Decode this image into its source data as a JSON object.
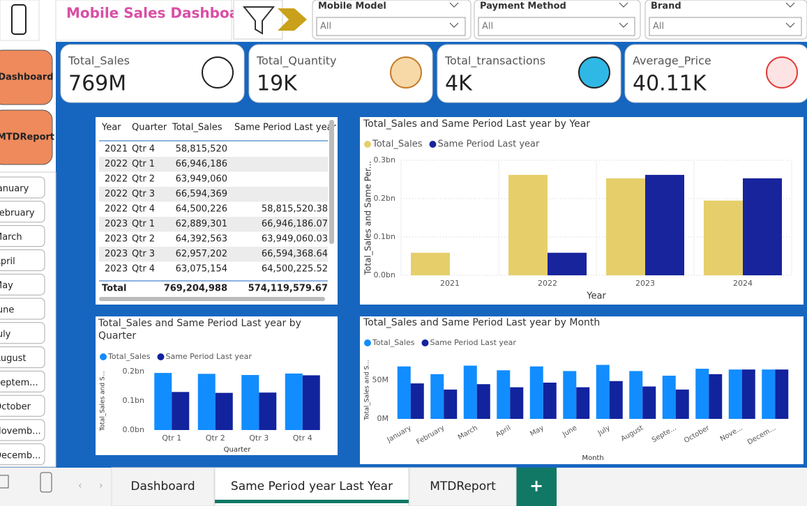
{
  "header": {
    "title": "Mobile Sales Dashboard"
  },
  "filters": [
    {
      "label": "Mobile Model",
      "value": "All"
    },
    {
      "label": "Payment Method",
      "value": "All"
    },
    {
      "label": "Brand",
      "value": "All"
    }
  ],
  "nav": [
    "Dashboard",
    "MTDReport"
  ],
  "months": [
    "January",
    "February",
    "March",
    "April",
    "May",
    "June",
    "July",
    "August",
    "Septem...",
    "October",
    "Novemb...",
    "Decemb..."
  ],
  "cards": [
    {
      "label": "Total_Sales",
      "value": "769M"
    },
    {
      "label": "Total_Quantity",
      "value": "19K"
    },
    {
      "label": "Total_transactions",
      "value": "4K"
    },
    {
      "label": "Average_Price",
      "value": "40.11K"
    }
  ],
  "table": {
    "columns": [
      "Year",
      "Quarter",
      "Total_Sales",
      "Same Period Last year"
    ],
    "rows": [
      [
        "2021",
        "Qtr 4",
        "58,815,520"
      ],
      [
        "2022",
        "Qtr 1",
        "66,946,186"
      ],
      [
        "2022",
        "Qtr 2",
        "63,949,060"
      ],
      [
        "2022",
        "Qtr 3",
        "66,594,369"
      ],
      [
        "2022",
        "Qtr 4",
        "64,500,226",
        "58,815,520.38"
      ],
      [
        "2023",
        "Qtr 1",
        "62,889,301",
        "66,946,186.07"
      ],
      [
        "2023",
        "Qtr 2",
        "64,392,563",
        "63,949,060.03"
      ],
      [
        "2023",
        "Qtr 3",
        "62,957,202",
        "66,594,368.64"
      ],
      [
        "2023",
        "Qtr 4",
        "63,075,154",
        "64,500,225.52"
      ]
    ],
    "total": [
      "Total",
      "769,204,988",
      "574,119,579.67"
    ]
  },
  "chart_data": [
    {
      "type": "bar",
      "title": "Total_Sales and Same Period Last year by Year",
      "categories": [
        "2021",
        "2022",
        "2023",
        "2024"
      ],
      "series": [
        {
          "name": "Total_Sales",
          "color": "#e6cf6b",
          "values": [
            0.0588,
            0.262,
            0.253,
            0.195
          ]
        },
        {
          "name": "Same Period Last year",
          "color": "#17249c",
          "values": [
            null,
            0.0588,
            0.262,
            0.253
          ]
        }
      ],
      "ylim": [
        0,
        0.3
      ],
      "yticks": [
        {
          "value": 0,
          "label": "0.0bn"
        },
        {
          "value": 0.1,
          "label": "0.1bn"
        },
        {
          "value": 0.2,
          "label": "0.2bn"
        },
        {
          "value": 0.3,
          "label": "0.3bn"
        }
      ],
      "xlabel": "Year",
      "ylabel": "Total_Sales and Same Per...",
      "grid": true
    },
    {
      "type": "bar",
      "title": "Total_Sales and Same Period Last year by Quarter",
      "categories": [
        "Qtr 1",
        "Qtr 2",
        "Qtr 3",
        "Qtr 4"
      ],
      "series": [
        {
          "name": "Total_Sales",
          "color": "#118dff",
          "values": [
            0.195,
            0.192,
            0.188,
            0.193
          ]
        },
        {
          "name": "Same Period Last year",
          "color": "#12239e",
          "values": [
            0.13,
            0.127,
            0.128,
            0.187
          ]
        }
      ],
      "ylim": [
        0,
        0.2
      ],
      "yticks": [
        {
          "value": 0,
          "label": "0.0bn"
        },
        {
          "value": 0.1,
          "label": "0.1bn"
        },
        {
          "value": 0.2,
          "label": "0.2bn"
        }
      ],
      "xlabel": "Quarter",
      "ylabel": "Total_Sales and S...",
      "grid": false
    },
    {
      "type": "bar",
      "title": "Total_Sales and Same Period Last year by Month",
      "categories": [
        "January",
        "February",
        "March",
        "April",
        "May",
        "June",
        "July",
        "August",
        "Septe...",
        "October",
        "Nove...",
        "Decem..."
      ],
      "series": [
        {
          "name": "Total_Sales",
          "color": "#118dff",
          "values": [
            68,
            58,
            69,
            63,
            68,
            62,
            70,
            62,
            56,
            65,
            64,
            64
          ]
        },
        {
          "name": "Same Period Last year",
          "color": "#12239e",
          "values": [
            46,
            38,
            45,
            41,
            47,
            41,
            49,
            42,
            38,
            58,
            64,
            64
          ]
        }
      ],
      "ylim": [
        0,
        75
      ],
      "yticks": [
        {
          "value": 0,
          "label": "0M"
        },
        {
          "value": 50,
          "label": "50M"
        }
      ],
      "xlabel": "Month",
      "ylabel": "Total_Sales and S...",
      "grid": false
    }
  ],
  "tabs": [
    "Dashboard",
    "Same Period year Last Year",
    "MTDReport"
  ]
}
